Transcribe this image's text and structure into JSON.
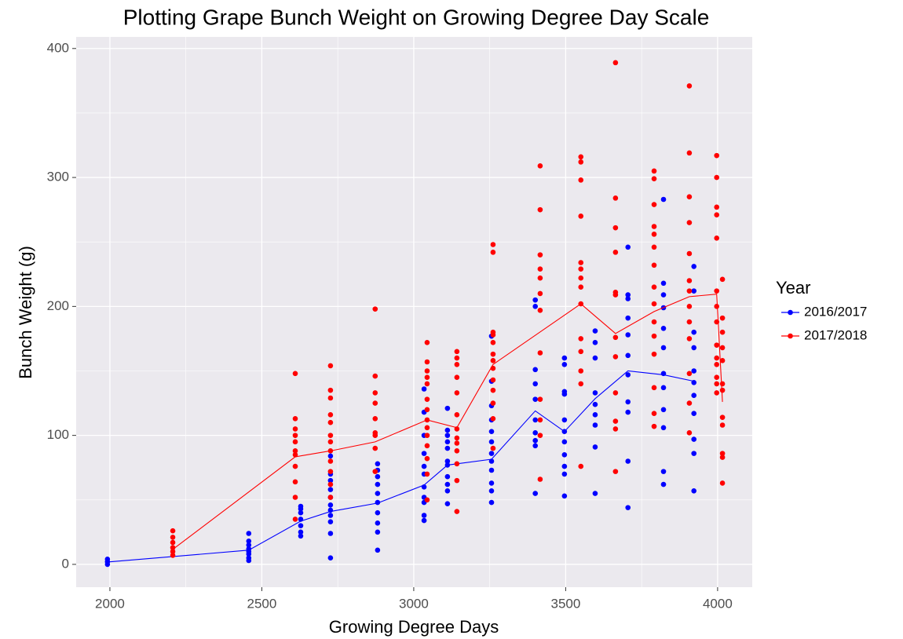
{
  "chart_data": {
    "type": "scatter",
    "title": "Plotting Grape Bunch Weight on Growing Degree Day Scale",
    "x_label": "Growing Degree Days",
    "y_label": "Bunch Weight (g)",
    "legend_title": "Year",
    "legend_position": "right",
    "grid": true,
    "xlim": [
      1889,
      4114
    ],
    "ylim": [
      -17.7,
      409
    ],
    "xticks": [
      2000,
      2500,
      3000,
      3500,
      4000
    ],
    "yticks": [
      0,
      100,
      200,
      300,
      400
    ],
    "series": [
      {
        "name": "2016/2017",
        "color": "#0000ff",
        "groups": [
          {
            "x": 1992,
            "values": [
              0,
              2,
              4
            ]
          },
          {
            "x": 2457,
            "values": [
              3,
              5,
              8,
              10,
              12,
              15,
              18,
              24
            ]
          },
          {
            "x": 2628,
            "values": [
              22,
              25,
              30,
              35,
              40,
              43,
              45
            ]
          },
          {
            "x": 2726,
            "values": [
              5,
              24,
              33,
              38,
              42,
              46,
              52,
              58,
              65,
              70,
              84
            ]
          },
          {
            "x": 2881,
            "values": [
              11,
              25,
              32,
              40,
              48,
              55,
              62,
              68,
              73,
              78
            ]
          },
          {
            "x": 3034,
            "values": [
              34,
              38,
              48,
              52,
              60,
              70,
              76,
              86,
              100,
              118,
              136
            ]
          },
          {
            "x": 3111,
            "values": [
              47,
              57,
              62,
              68,
              77,
              80,
              90,
              95,
              100,
              104,
              121
            ]
          },
          {
            "x": 3256,
            "values": [
              48,
              57,
              63,
              73,
              80,
              86,
              95,
              103,
              112,
              123,
              142,
              177
            ]
          },
          {
            "x": 3400,
            "values": [
              55,
              92,
              96,
              102,
              112,
              128,
              140,
              151,
              200,
              205
            ]
          },
          {
            "x": 3496,
            "values": [
              53,
              70,
              76,
              85,
              95,
              103,
              112,
              132,
              134,
              155,
              160
            ]
          },
          {
            "x": 3597,
            "values": [
              55,
              91,
              108,
              116,
              124,
              133,
              160,
              172,
              181
            ]
          },
          {
            "x": 3705,
            "values": [
              44,
              80,
              118,
              126,
              147,
              162,
              178,
              191,
              206,
              209,
              246
            ]
          },
          {
            "x": 3822,
            "values": [
              62,
              72,
              106,
              120,
              137,
              148,
              168,
              183,
              199,
              209,
              218,
              283
            ]
          },
          {
            "x": 3922,
            "values": [
              57,
              86,
              97,
              117,
              131,
              141,
              150,
              168,
              180,
              212,
              231
            ]
          }
        ],
        "mean_line": {
          "x": [
            1992,
            2457,
            2628,
            2726,
            2881,
            3034,
            3111,
            3256,
            3400,
            3496,
            3597,
            3705,
            3822,
            3922
          ],
          "values": [
            1.8,
            11,
            33.5,
            41,
            47.5,
            61.5,
            77,
            81.5,
            119,
            103,
            128.5,
            150,
            147,
            142
          ]
        }
      },
      {
        "name": "2017/2018",
        "color": "#ff0000",
        "groups": [
          {
            "x": 2207,
            "values": [
              7,
              10,
              13,
              17,
              21,
              26
            ]
          },
          {
            "x": 2610,
            "values": [
              35,
              52,
              64,
              76,
              85,
              88,
              95,
              100,
              105,
              113,
              148
            ]
          },
          {
            "x": 2726,
            "values": [
              52,
              62,
              72,
              80,
              88,
              95,
              100,
              110,
              116,
              129,
              135,
              154
            ]
          },
          {
            "x": 2873,
            "values": [
              72,
              90,
              100,
              102,
              113,
              125,
              133,
              146,
              198
            ]
          },
          {
            "x": 3044,
            "values": [
              50,
              70,
              82,
              92,
              100,
              106,
              112,
              120,
              128,
              140,
              145,
              150,
              157,
              172
            ]
          },
          {
            "x": 3142,
            "values": [
              41,
              65,
              78,
              88,
              94,
              98,
              105,
              116,
              133,
              145,
              155,
              160,
              165
            ]
          },
          {
            "x": 3261,
            "values": [
              90,
              113,
              125,
              135,
              143,
              152,
              158,
              163,
              172,
              178,
              180,
              242,
              248
            ]
          },
          {
            "x": 3416,
            "values": [
              66,
              100,
              112,
              128,
              164,
              197,
              210,
              222,
              229,
              240,
              275,
              309
            ]
          },
          {
            "x": 3550,
            "values": [
              76,
              140,
              150,
              165,
              175,
              202,
              215,
              222,
              229,
              234,
              270,
              298,
              312,
              316
            ]
          },
          {
            "x": 3664,
            "values": [
              72,
              105,
              111,
              133,
              161,
              176,
              209,
              211,
              242,
              261,
              284,
              389
            ]
          },
          {
            "x": 3791,
            "values": [
              107,
              117,
              137,
              163,
              177,
              188,
              202,
              215,
              232,
              246,
              256,
              262,
              279,
              299,
              305
            ]
          },
          {
            "x": 3907,
            "values": [
              102,
              125,
              148,
              175,
              188,
              200,
              212,
              220,
              241,
              265,
              285,
              319,
              371
            ]
          },
          {
            "x": 3997,
            "values": [
              133,
              140,
              145,
              155,
              160,
              170,
              188,
              200,
              212,
              253,
              271,
              277,
              300,
              317
            ]
          },
          {
            "x": 4016,
            "values": [
              63,
              83,
              86,
              108,
              114,
              135,
              140,
              158,
              168,
              180,
              191,
              221
            ]
          }
        ],
        "mean_line": {
          "x": [
            2207,
            2610,
            2726,
            2873,
            3044,
            3142,
            3261,
            3550,
            3664,
            3791,
            3907,
            3997,
            4016
          ],
          "values": [
            11.6,
            83.4,
            88,
            95,
            112,
            106,
            155,
            202,
            179,
            196,
            207.6,
            209.5,
            126
          ]
        }
      }
    ]
  }
}
